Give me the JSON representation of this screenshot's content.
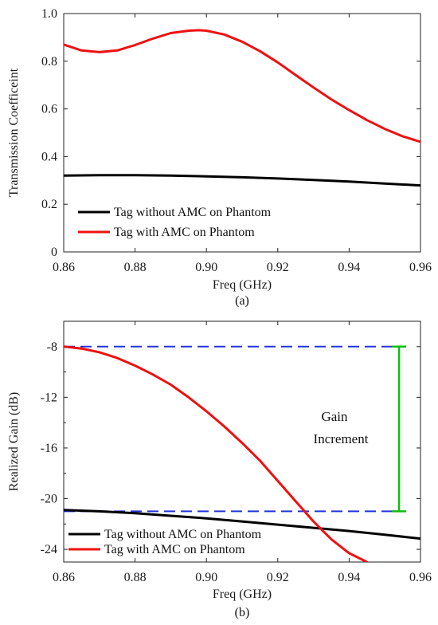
{
  "chart_data": [
    {
      "type": "line",
      "caption": "(a)",
      "xlabel": "Freq (GHz)",
      "ylabel": "Transmission Coefficeint",
      "xlim": [
        0.86,
        0.96
      ],
      "ylim": [
        0,
        1.0
      ],
      "xticks": [
        "0.86",
        "0.88",
        "0.90",
        "0.92",
        "0.94",
        "0.96"
      ],
      "yticks": [
        "0",
        "0.2",
        "0.4",
        "0.6",
        "0.8",
        "1.0"
      ],
      "legend_position": "bottom-left",
      "series": [
        {
          "name": "Tag without AMC on Phantom",
          "color": "#000000",
          "x": [
            0.86,
            0.87,
            0.88,
            0.89,
            0.9,
            0.91,
            0.92,
            0.93,
            0.94,
            0.95,
            0.96
          ],
          "y": [
            0.32,
            0.322,
            0.322,
            0.32,
            0.317,
            0.313,
            0.308,
            0.302,
            0.295,
            0.287,
            0.279
          ]
        },
        {
          "name": "Tag with AMC on Phantom",
          "color": "#ee1111",
          "x": [
            0.86,
            0.865,
            0.87,
            0.875,
            0.88,
            0.885,
            0.89,
            0.895,
            0.898,
            0.9,
            0.905,
            0.91,
            0.915,
            0.92,
            0.925,
            0.93,
            0.935,
            0.94,
            0.945,
            0.95,
            0.955,
            0.96
          ],
          "y": [
            0.87,
            0.845,
            0.838,
            0.845,
            0.868,
            0.895,
            0.918,
            0.928,
            0.93,
            0.928,
            0.912,
            0.882,
            0.842,
            0.795,
            0.742,
            0.69,
            0.64,
            0.595,
            0.553,
            0.516,
            0.485,
            0.462
          ]
        }
      ]
    },
    {
      "type": "line",
      "caption": "(b)",
      "xlabel": "Freq (GHz)",
      "ylabel": "Realized Gain (dB)",
      "xlim": [
        0.86,
        0.96
      ],
      "ylim": [
        -25,
        -6
      ],
      "xticks": [
        "0.86",
        "0.88",
        "0.90",
        "0.92",
        "0.94",
        "0.96"
      ],
      "yticks": [
        "-8",
        "-12",
        "-16",
        "-20",
        "-24"
      ],
      "ytick_values": [
        -8,
        -12,
        -16,
        -20,
        -24
      ],
      "legend_position": "bottom-left",
      "annotation": {
        "text_line1": "Gain",
        "text_line2": "Increment",
        "arrow_x": 0.954,
        "arrow_from": -8,
        "arrow_to": -21,
        "color": "#11bb11"
      },
      "reference_lines": [
        {
          "y": -8,
          "x_from": 0.86,
          "x_to": 0.954,
          "color": "#2233dd"
        },
        {
          "y": -21,
          "x_from": 0.86,
          "x_to": 0.954,
          "color": "#2233dd"
        }
      ],
      "series": [
        {
          "name": "Tag without AMC on Phantom",
          "color": "#000000",
          "x": [
            0.86,
            0.87,
            0.88,
            0.89,
            0.9,
            0.91,
            0.92,
            0.93,
            0.94,
            0.95,
            0.96
          ],
          "y": [
            -20.9,
            -21.0,
            -21.15,
            -21.35,
            -21.55,
            -21.8,
            -22.05,
            -22.3,
            -22.55,
            -22.85,
            -23.15
          ]
        },
        {
          "name": "Tag with AMC on Phantom",
          "color": "#ee1111",
          "x": [
            0.86,
            0.865,
            0.87,
            0.875,
            0.88,
            0.885,
            0.89,
            0.895,
            0.9,
            0.905,
            0.91,
            0.915,
            0.92,
            0.925,
            0.93,
            0.935,
            0.94,
            0.945
          ],
          "y": [
            -8.0,
            -8.15,
            -8.45,
            -8.9,
            -9.5,
            -10.2,
            -11.0,
            -12.0,
            -13.1,
            -14.3,
            -15.6,
            -17.0,
            -18.6,
            -20.2,
            -21.8,
            -23.2,
            -24.3,
            -25.0
          ]
        }
      ]
    }
  ]
}
